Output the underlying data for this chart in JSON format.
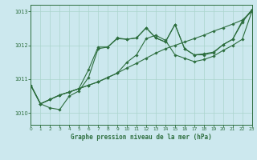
{
  "title": "Graphe pression niveau de la mer (hPa)",
  "bg_color": "#cce8ee",
  "grid_color": "#aad4cc",
  "line_color": "#2d6e3e",
  "xlim": [
    0,
    23
  ],
  "ylim": [
    1009.65,
    1013.2
  ],
  "yticks": [
    1010,
    1011,
    1012,
    1013
  ],
  "xticks": [
    0,
    1,
    2,
    3,
    4,
    5,
    6,
    7,
    8,
    9,
    10,
    11,
    12,
    13,
    14,
    15,
    16,
    17,
    18,
    19,
    20,
    21,
    22,
    23
  ],
  "lines": [
    {
      "x": [
        0,
        1,
        2,
        3,
        4,
        5,
        6,
        7,
        8,
        9,
        10,
        11,
        12,
        13,
        14,
        15,
        16,
        17,
        18,
        19,
        20,
        21,
        22,
        23
      ],
      "y": [
        1010.82,
        1010.27,
        1010.4,
        1010.53,
        1010.62,
        1010.72,
        1010.82,
        1010.92,
        1011.05,
        1011.18,
        1011.33,
        1011.47,
        1011.62,
        1011.77,
        1011.9,
        1012.0,
        1012.1,
        1012.2,
        1012.3,
        1012.42,
        1012.52,
        1012.63,
        1012.75,
        1013.0
      ]
    },
    {
      "x": [
        0,
        1,
        2,
        3,
        4,
        5,
        6,
        7,
        8,
        9,
        10,
        11,
        12,
        13,
        14,
        15,
        16,
        17,
        18,
        19,
        20,
        21,
        22,
        23
      ],
      "y": [
        1010.82,
        1010.27,
        1010.4,
        1010.53,
        1010.62,
        1010.72,
        1010.82,
        1010.92,
        1011.05,
        1011.18,
        1011.5,
        1011.72,
        1012.2,
        1012.3,
        1012.15,
        1011.72,
        1011.62,
        1011.52,
        1011.58,
        1011.68,
        1011.85,
        1012.0,
        1012.18,
        1013.0
      ]
    },
    {
      "x": [
        0,
        1,
        2,
        3,
        4,
        5,
        6,
        7,
        8,
        9,
        10,
        11,
        12,
        13,
        14,
        15,
        16,
        17,
        18,
        19,
        20,
        21,
        22,
        23
      ],
      "y": [
        1010.82,
        1010.27,
        1010.15,
        1010.1,
        1010.5,
        1010.65,
        1011.05,
        1011.9,
        1011.95,
        1012.2,
        1012.18,
        1012.22,
        1012.52,
        1012.22,
        1012.1,
        1012.62,
        1011.9,
        1011.72,
        1011.72,
        1011.78,
        1012.02,
        1012.18,
        1012.68,
        1013.05
      ]
    },
    {
      "x": [
        0,
        1,
        2,
        3,
        4,
        5,
        6,
        7,
        8,
        9,
        10,
        11,
        12,
        13,
        14,
        15,
        16,
        17,
        18,
        19,
        20,
        21,
        22,
        23
      ],
      "y": [
        1010.82,
        1010.27,
        1010.4,
        1010.53,
        1010.62,
        1010.72,
        1011.28,
        1011.95,
        1011.95,
        1012.22,
        1012.18,
        1012.22,
        1012.52,
        1012.22,
        1012.1,
        1012.62,
        1011.9,
        1011.72,
        1011.75,
        1011.8,
        1012.02,
        1012.18,
        1012.72,
        1013.05
      ]
    }
  ]
}
